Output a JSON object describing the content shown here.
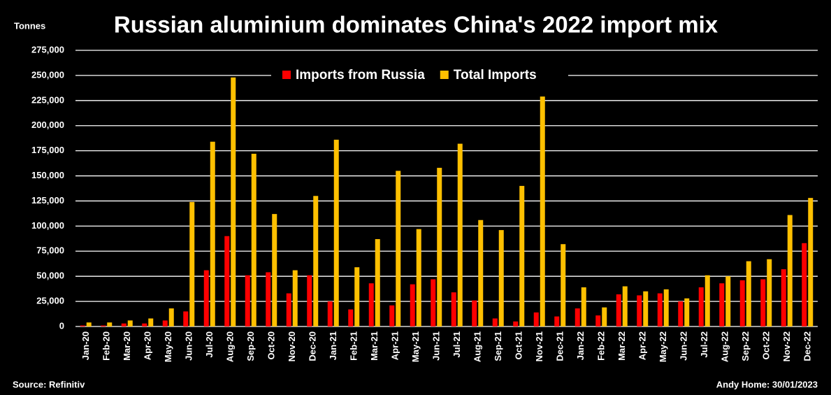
{
  "chart_data": {
    "type": "bar",
    "title": "Russian aluminium dominates China's 2022 import mix",
    "y_unit_label": "Tonnes",
    "source": "Source: Refinitiv",
    "credit": "Andy Home: 30/01/2023",
    "legend": "top-center",
    "grid": true,
    "categories": [
      "Jan-20",
      "Feb-20",
      "Mar-20",
      "Apr-20",
      "May-20",
      "Jun-20",
      "Jul-20",
      "Aug-20",
      "Sep-20",
      "Oct-20",
      "Nov-20",
      "Dec-20",
      "Jan-21",
      "Feb-21",
      "Mar-21",
      "Apr-21",
      "May-21",
      "Jun-21",
      "Jul-21",
      "Aug-21",
      "Sep-21",
      "Oct-21",
      "Nov-21",
      "Dec-21",
      "Jan-22",
      "Feb-22",
      "Mar-22",
      "Apr-22",
      "May-22",
      "Jun-22",
      "Jul-22",
      "Aug-22",
      "Sep-22",
      "Oct-22",
      "Nov-22",
      "Dec-22"
    ],
    "series": [
      {
        "name": "Imports from Russia",
        "color": "#ff0000",
        "values": [
          1000,
          1000,
          3000,
          3000,
          6000,
          15000,
          56000,
          90000,
          51000,
          54000,
          33000,
          51000,
          25000,
          17000,
          43000,
          21000,
          42000,
          47000,
          34000,
          26000,
          8000,
          5000,
          14000,
          10000,
          18000,
          11000,
          32000,
          31000,
          33000,
          25000,
          39000,
          43000,
          46000,
          47000,
          57000,
          83000
        ]
      },
      {
        "name": "Total Imports",
        "color": "#ffc000",
        "values": [
          4000,
          4000,
          6000,
          8000,
          18000,
          124000,
          184000,
          248000,
          172000,
          112000,
          56000,
          130000,
          186000,
          59000,
          87000,
          155000,
          97000,
          158000,
          182000,
          106000,
          96000,
          140000,
          229000,
          82000,
          39000,
          19000,
          40000,
          35000,
          37000,
          28000,
          51000,
          50000,
          65000,
          67000,
          111000,
          128000
        ]
      }
    ],
    "ylim": [
      0,
      275000
    ],
    "yticks": [
      0,
      {
        "value": 25000,
        "label": "25,000"
      },
      {
        "value": 50000,
        "label": "50,000"
      },
      {
        "value": 75000,
        "label": "75,000"
      },
      {
        "value": 100000,
        "label": "100,000"
      },
      {
        "value": 125000,
        "label": "125,000"
      },
      {
        "value": 150000,
        "label": "150,000"
      },
      {
        "value": 175000,
        "label": "175,000"
      },
      {
        "value": 200000,
        "label": "200,000"
      },
      {
        "value": 225000,
        "label": "225,000"
      },
      {
        "value": 250000,
        "label": "250,000"
      },
      {
        "value": 275000,
        "label": "275,000"
      }
    ]
  }
}
